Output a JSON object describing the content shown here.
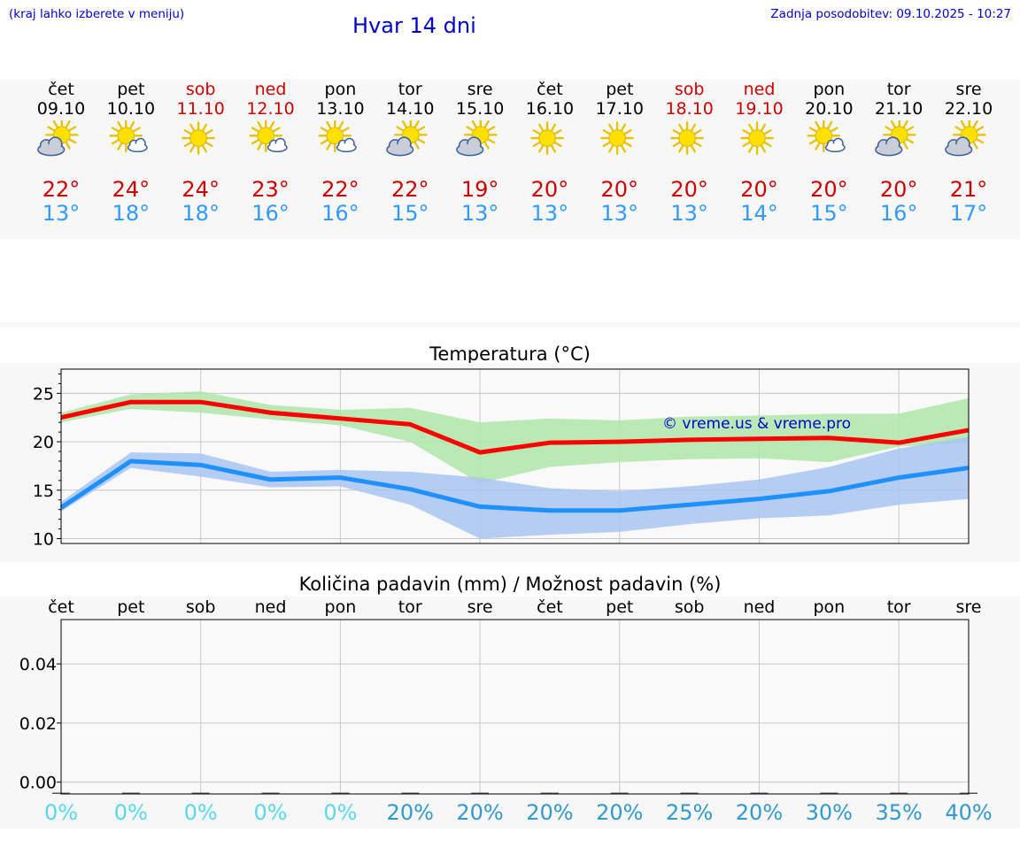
{
  "header": {
    "hint": "(kraj lahko izberete v meniju)",
    "title": "Hvar 14 dni",
    "updated": "Zadnja posodobitev: 09.10.2025 - 10:27"
  },
  "days": [
    {
      "name": "čet",
      "date": "09.10",
      "weekend": false,
      "icon": "sun-cloud-icon",
      "tmax": "22°",
      "tmin": "13°"
    },
    {
      "name": "pet",
      "date": "10.10",
      "weekend": false,
      "icon": "sun-small-cloud-icon",
      "tmax": "24°",
      "tmin": "18°"
    },
    {
      "name": "sob",
      "date": "11.10",
      "weekend": true,
      "icon": "sun-icon",
      "tmax": "24°",
      "tmin": "18°"
    },
    {
      "name": "ned",
      "date": "12.10",
      "weekend": true,
      "icon": "sun-small-cloud-icon",
      "tmax": "23°",
      "tmin": "16°"
    },
    {
      "name": "pon",
      "date": "13.10",
      "weekend": false,
      "icon": "sun-small-cloud-icon",
      "tmax": "22°",
      "tmin": "16°"
    },
    {
      "name": "tor",
      "date": "14.10",
      "weekend": false,
      "icon": "sun-cloud-icon",
      "tmax": "22°",
      "tmin": "15°"
    },
    {
      "name": "sre",
      "date": "15.10",
      "weekend": false,
      "icon": "sun-cloud-icon",
      "tmax": "19°",
      "tmin": "13°"
    },
    {
      "name": "čet",
      "date": "16.10",
      "weekend": false,
      "icon": "sun-icon",
      "tmax": "20°",
      "tmin": "13°"
    },
    {
      "name": "pet",
      "date": "17.10",
      "weekend": false,
      "icon": "sun-icon",
      "tmax": "20°",
      "tmin": "13°"
    },
    {
      "name": "sob",
      "date": "18.10",
      "weekend": true,
      "icon": "sun-icon",
      "tmax": "20°",
      "tmin": "13°"
    },
    {
      "name": "ned",
      "date": "19.10",
      "weekend": true,
      "icon": "sun-icon",
      "tmax": "20°",
      "tmin": "14°"
    },
    {
      "name": "pon",
      "date": "20.10",
      "weekend": false,
      "icon": "sun-small-cloud-icon",
      "tmax": "20°",
      "tmin": "15°"
    },
    {
      "name": "tor",
      "date": "21.10",
      "weekend": false,
      "icon": "sun-cloud-icon",
      "tmax": "20°",
      "tmin": "16°"
    },
    {
      "name": "sre",
      "date": "22.10",
      "weekend": false,
      "icon": "sun-cloud-icon",
      "tmax": "21°",
      "tmin": "17°"
    }
  ],
  "colors": {
    "max": "#ff0000",
    "min": "#1e90ff",
    "max_band": "#aee6a8",
    "min_band": "#a9c4f2",
    "weekend": "#cc0000",
    "precip_low": "#5ad8e8",
    "precip_high": "#3399cc"
  },
  "chart_data": [
    {
      "type": "line",
      "title": "Temperatura (°C)",
      "watermark": "© vreme.us & vreme.pro",
      "ylim": [
        9.5,
        27.5
      ],
      "yticks": [
        10,
        15,
        20,
        25
      ],
      "grid": true,
      "x": [
        0,
        1,
        2,
        3,
        4,
        5,
        6,
        7,
        8,
        9,
        10,
        11,
        12,
        13
      ],
      "series": [
        {
          "role": "max",
          "values": [
            22.5,
            24.1,
            24.1,
            23.0,
            22.4,
            21.8,
            18.9,
            19.9,
            20.0,
            20.2,
            20.3,
            20.4,
            19.9,
            21.2
          ]
        },
        {
          "role": "min",
          "values": [
            13.2,
            18.0,
            17.6,
            16.1,
            16.3,
            15.1,
            13.3,
            12.9,
            12.9,
            13.5,
            14.1,
            14.9,
            16.3,
            17.3
          ]
        }
      ],
      "bands": [
        {
          "role": "max",
          "upper": [
            23.0,
            24.9,
            25.2,
            23.8,
            23.3,
            23.5,
            22.0,
            22.4,
            22.2,
            22.6,
            22.7,
            22.9,
            22.9,
            24.5
          ],
          "lower": [
            22.0,
            23.4,
            23.0,
            22.3,
            21.7,
            20.0,
            15.7,
            17.4,
            17.9,
            18.2,
            18.3,
            17.9,
            19.5,
            19.9
          ]
        },
        {
          "role": "min",
          "upper": [
            13.8,
            18.9,
            18.8,
            16.9,
            17.1,
            16.9,
            16.3,
            15.2,
            14.9,
            15.4,
            16.1,
            17.4,
            19.3,
            20.5
          ],
          "lower": [
            12.8,
            17.3,
            16.4,
            15.3,
            15.4,
            13.5,
            10.0,
            10.4,
            10.7,
            11.5,
            12.1,
            12.4,
            13.5,
            14.1
          ]
        }
      ]
    },
    {
      "type": "bar",
      "title": "Količina padavin (mm) / Možnost padavin (%)",
      "categories": [
        "čet",
        "pet",
        "sob",
        "ned",
        "pon",
        "tor",
        "sre",
        "čet",
        "pet",
        "sob",
        "ned",
        "pon",
        "tor",
        "sre"
      ],
      "values": [
        0,
        0,
        0,
        0,
        0,
        0,
        0,
        0,
        0,
        0,
        0,
        0,
        0,
        0
      ],
      "ylim": [
        -0.004,
        0.055
      ],
      "yticks": [
        "0.00",
        "0.02",
        "0.04"
      ],
      "chance_labels": [
        "0%",
        "0%",
        "0%",
        "0%",
        "0%",
        "20%",
        "20%",
        "20%",
        "20%",
        "25%",
        "20%",
        "30%",
        "35%",
        "40%"
      ],
      "chance_values": [
        0,
        0,
        0,
        0,
        0,
        20,
        20,
        20,
        20,
        25,
        20,
        30,
        35,
        40
      ]
    }
  ]
}
